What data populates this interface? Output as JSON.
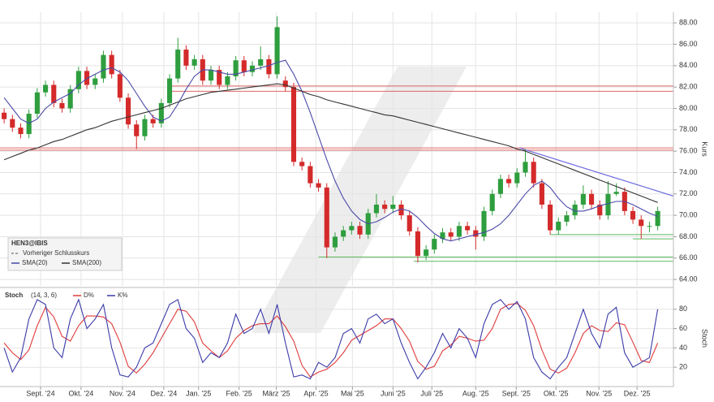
{
  "chart_data": [
    {
      "type": "candlestick",
      "title": "HEN3@IBIS",
      "legend_note": "Vorheriger Schlusskurs",
      "y_label": "Kurs",
      "xlim": [
        0,
        81.4
      ],
      "ylim": [
        63.4,
        89
      ],
      "yticks": [
        {
          "value": 64,
          "label": "64.00"
        },
        {
          "value": 66,
          "label": "66.00"
        },
        {
          "value": 68,
          "label": "68.00"
        },
        {
          "value": 70,
          "label": "70.00"
        },
        {
          "value": 72,
          "label": "72.00"
        },
        {
          "value": 74,
          "label": "74.00"
        },
        {
          "value": 76,
          "label": "76.00"
        },
        {
          "value": 78,
          "label": "78.00"
        },
        {
          "value": 80,
          "label": "80.00"
        },
        {
          "value": 82,
          "label": "82.00"
        },
        {
          "value": 84,
          "label": "84.00"
        },
        {
          "value": 86,
          "label": "86.00"
        },
        {
          "value": 88,
          "label": "88.00"
        }
      ],
      "xticks": [
        {
          "value": 4.9,
          "label": "Sept. '24"
        },
        {
          "value": 9.8,
          "label": "Okt. '24"
        },
        {
          "value": 14.8,
          "label": "Nov. '24"
        },
        {
          "value": 19.8,
          "label": "Dez. '24"
        },
        {
          "value": 24.0,
          "label": "Jan. '25"
        },
        {
          "value": 28.9,
          "label": "Feb. '25"
        },
        {
          "value": 33.4,
          "label": "März '25"
        },
        {
          "value": 38.2,
          "label": "Apr. '25"
        },
        {
          "value": 42.6,
          "label": "Mai '25"
        },
        {
          "value": 47.5,
          "label": "Juni '25"
        },
        {
          "value": 52.2,
          "label": "Juli '25"
        },
        {
          "value": 57.5,
          "label": "Aug. '25"
        },
        {
          "value": 62.4,
          "label": "Sept. '25"
        },
        {
          "value": 67.2,
          "label": "Okt. '25"
        },
        {
          "value": 72.4,
          "label": "Nov. '25"
        },
        {
          "value": 77.0,
          "label": "Dez. '25"
        }
      ],
      "grid": true,
      "up_color": "#2e9e3e",
      "down_color": "#d42a2a",
      "open": [
        79.6,
        79,
        78.2,
        77.6,
        79.5,
        81.5,
        82.2,
        80.5,
        80,
        81.8,
        83.5,
        82.2,
        82.8,
        85,
        83.2,
        81,
        78.5,
        77.4,
        79,
        78.6,
        80.5,
        82.8,
        85.5,
        84,
        84.6,
        82.6,
        83.6,
        82.2,
        83,
        84.5,
        83.4,
        84,
        84.6,
        83.2,
        82.6,
        82,
        75,
        74.6,
        73,
        72.6,
        67,
        68,
        68.6,
        69,
        68.2,
        70.2,
        71,
        70.6,
        71,
        70,
        68.5,
        66.2,
        66.8,
        67.8,
        68.4,
        68,
        69,
        68.6,
        68,
        70.4,
        72,
        73.4,
        73,
        74,
        75,
        73,
        71,
        68.6,
        69.4,
        70,
        71,
        72,
        71,
        70,
        72,
        72.2,
        70.4,
        69.6,
        69,
        69
      ],
      "high": [
        80,
        79.4,
        78.6,
        79.9,
        81.9,
        82.6,
        82.6,
        80.9,
        82.2,
        83.9,
        83.9,
        83.2,
        85.4,
        85.4,
        83.6,
        81.4,
        78.9,
        79.4,
        79.4,
        80.9,
        83.2,
        86.6,
        85.9,
        85,
        85,
        84,
        84,
        83.4,
        84.9,
        84.9,
        84.4,
        85.8,
        85,
        88.6,
        83,
        82.4,
        75.4,
        75,
        73.4,
        73,
        68.4,
        69,
        69.4,
        69.4,
        70.6,
        72,
        71.4,
        71.8,
        71.4,
        70.4,
        68.9,
        67.2,
        68.2,
        68.8,
        68.8,
        69.4,
        69.4,
        69,
        70.8,
        72.4,
        73.8,
        73.8,
        74.4,
        76.2,
        75.4,
        73.4,
        71.4,
        69.8,
        70.4,
        71.4,
        72.8,
        72.4,
        71.4,
        73.2,
        73,
        72.6,
        70.8,
        70,
        69.4,
        70.8
      ],
      "low": [
        78.6,
        77.8,
        77.2,
        77.2,
        79.1,
        81.1,
        80.1,
        79.6,
        79.6,
        81.4,
        81.8,
        81.8,
        82.4,
        82.8,
        80.6,
        78.1,
        76.2,
        77,
        78.2,
        78.2,
        80.1,
        82.4,
        83.6,
        83.6,
        82.2,
        82.2,
        81.8,
        81.8,
        82.6,
        83,
        83,
        83.6,
        82.8,
        82.8,
        81.6,
        74.6,
        74.2,
        72.6,
        72.2,
        66,
        66.6,
        67.6,
        68.2,
        67.8,
        67.8,
        69.8,
        70.2,
        70.2,
        69.6,
        68.1,
        65.6,
        65.8,
        66.4,
        67.4,
        67.6,
        67.6,
        68.2,
        66.8,
        67.6,
        70,
        71.6,
        72.6,
        72.6,
        73.6,
        72.6,
        70.6,
        68.2,
        68.2,
        69,
        69.6,
        70.6,
        70.6,
        69.6,
        69.6,
        71.8,
        70,
        69.2,
        67.8,
        68.4,
        68.6
      ],
      "close": [
        79,
        78.2,
        77.6,
        79.5,
        81.5,
        82.2,
        80.5,
        80,
        81.8,
        83.5,
        82.2,
        82.8,
        85,
        83.2,
        81,
        78.5,
        77.4,
        79,
        78.6,
        80.5,
        82.8,
        85.5,
        84,
        84.6,
        82.6,
        83.6,
        82.2,
        83,
        84.5,
        83.4,
        84,
        84.6,
        83.2,
        87.6,
        82,
        75,
        74.6,
        73,
        72.6,
        67,
        68,
        68.6,
        69,
        68.2,
        70.2,
        71,
        70.6,
        71,
        70,
        68.5,
        66.2,
        66.8,
        67.8,
        68.4,
        68,
        69,
        68.6,
        68,
        70.4,
        72,
        73.4,
        73,
        74,
        75,
        73,
        71,
        68.6,
        69.4,
        70,
        71,
        72,
        71,
        70,
        72,
        72.2,
        70.4,
        69.6,
        69,
        69,
        70.4
      ],
      "series": [
        {
          "name": "SMA(20)",
          "color": "#4a4aa8",
          "values": [
            81,
            80,
            79,
            78.6,
            79,
            80,
            80.6,
            81,
            81.4,
            82.2,
            82.8,
            83.2,
            83.6,
            83.8,
            83.4,
            82.6,
            81.4,
            80.2,
            79.2,
            78.8,
            79.2,
            80.4,
            81.8,
            83,
            83.6,
            83.6,
            83.4,
            83.2,
            83.2,
            83.4,
            83.6,
            83.8,
            84,
            84.3,
            84.5,
            83.2,
            81.6,
            79.6,
            77.4,
            75.2,
            73.2,
            71.6,
            70.4,
            69.6,
            69.2,
            69.4,
            69.8,
            70.3,
            70.6,
            70.4,
            69.8,
            69,
            68.3,
            67.8,
            67.6,
            67.8,
            68,
            68.2,
            68.4,
            68.7,
            69.2,
            70,
            71,
            72,
            72.8,
            73.2,
            72.6,
            71.6,
            70.8,
            70.4,
            70.4,
            70.6,
            70.9,
            71.1,
            71.3,
            71.3,
            71,
            70.6,
            70.2,
            69.9
          ]
        },
        {
          "name": "SMA(200)",
          "color": "#333333",
          "values": [
            75.2,
            75.5,
            75.8,
            76.1,
            76.3,
            76.6,
            76.9,
            77.1,
            77.4,
            77.7,
            78,
            78.2,
            78.5,
            78.8,
            79,
            79.2,
            79.4,
            79.6,
            79.8,
            80,
            80.3,
            80.6,
            80.9,
            81.1,
            81.3,
            81.5,
            81.6,
            81.7,
            81.8,
            81.9,
            82,
            82.1,
            82.2,
            82.3,
            82.2,
            81.9,
            81.6,
            81.3,
            81.1,
            80.8,
            80.6,
            80.4,
            80.2,
            80,
            79.8,
            79.6,
            79.4,
            79.3,
            79.1,
            78.9,
            78.7,
            78.5,
            78.3,
            78.1,
            77.9,
            77.7,
            77.5,
            77.3,
            77.1,
            76.9,
            76.7,
            76.5,
            76.2,
            76,
            75.7,
            75.4,
            75.1,
            74.8,
            74.5,
            74.2,
            73.9,
            73.6,
            73.3,
            73,
            72.7,
            72.4,
            72.1,
            71.8,
            71.5,
            71.2
          ]
        }
      ],
      "levels": [
        {
          "value": 82.1,
          "start": 20.5,
          "color": "#e06464"
        },
        {
          "value": 81.6,
          "start": 20.5,
          "color": "#e06464"
        },
        {
          "value": 76.3,
          "start": 0,
          "color": "#e06464"
        },
        {
          "value": 76.1,
          "start": 0,
          "color": "#e06464"
        },
        {
          "value": 68.2,
          "start": 66.5,
          "color": "#5cb85c"
        },
        {
          "value": 67.8,
          "start": 76.5,
          "color": "#5cb85c"
        },
        {
          "value": 66.1,
          "start": 38.5,
          "color": "#5cb85c"
        },
        {
          "value": 65.7,
          "start": 50,
          "color": "#5cb85c"
        }
      ],
      "trendline": {
        "x": [
          62.8,
          81.4
        ],
        "values": [
          76.3,
          71.8
        ],
        "color": "#6a6ae0"
      }
    },
    {
      "type": "line",
      "title": "Stoch",
      "subtitle": "(14, 3, 6)",
      "y_label": "Stoch",
      "xlim": [
        0,
        81.4
      ],
      "ylim": [
        0,
        100
      ],
      "yticks": [
        20,
        40,
        60,
        80
      ],
      "grid": true,
      "series": [
        {
          "name": "D%",
          "color": "#e03a3a",
          "values": [
            45,
            35,
            28,
            38,
            63,
            82,
            72,
            52,
            47,
            63,
            73,
            73,
            72,
            65,
            46,
            21,
            14,
            23,
            35,
            50,
            65,
            80,
            78,
            67,
            45,
            37,
            30,
            37,
            50,
            58,
            63,
            65,
            65,
            73,
            62,
            47,
            22,
            10,
            15,
            18,
            25,
            35,
            48,
            53,
            58,
            63,
            70,
            70,
            60,
            47,
            26,
            18,
            21,
            37,
            43,
            52,
            50,
            47,
            48,
            60,
            80,
            85,
            86,
            79,
            63,
            38,
            18,
            14,
            19,
            35,
            55,
            63,
            58,
            57,
            66,
            64,
            46,
            27,
            25,
            45
          ]
        },
        {
          "name": "K%",
          "color": "#3a3aa8",
          "values": [
            40,
            15,
            30,
            70,
            90,
            85,
            40,
            30,
            70,
            90,
            60,
            70,
            85,
            40,
            12,
            10,
            20,
            40,
            45,
            65,
            85,
            90,
            60,
            50,
            25,
            35,
            30,
            45,
            75,
            55,
            60,
            80,
            55,
            85,
            45,
            10,
            12,
            8,
            25,
            20,
            30,
            55,
            60,
            45,
            70,
            75,
            65,
            70,
            45,
            25,
            8,
            20,
            35,
            55,
            40,
            60,
            50,
            30,
            65,
            85,
            90,
            80,
            88,
            70,
            30,
            15,
            8,
            20,
            30,
            55,
            80,
            55,
            40,
            75,
            82,
            35,
            20,
            25,
            30,
            80
          ]
        }
      ]
    }
  ]
}
